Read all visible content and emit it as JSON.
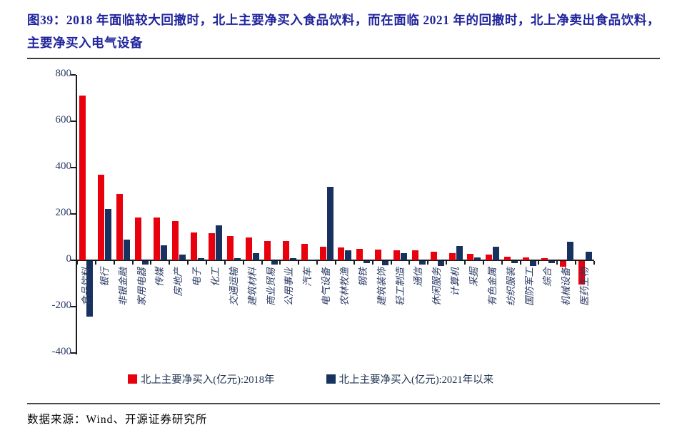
{
  "figure": {
    "title": "图39：2018 年面临较大回撤时，北上主要净买入食品饮料，而在面临 2021 年的回撤时，北上净卖出食品饮料，主要净买入电气设备",
    "source": "数据来源：Wind、开源证券研究所"
  },
  "colors": {
    "title_navy": "#20249c",
    "bar_red": "#e8000d",
    "bar_navy": "#17325f",
    "axis_text": "#2b3a64",
    "legend_text": "#1f3352",
    "axis_line": "#1a1a1a"
  },
  "chart_data": {
    "type": "bar",
    "unit": "亿元",
    "title": "",
    "xlabel": "",
    "ylabel": "",
    "ylim": [
      -400,
      800
    ],
    "yticks": [
      800,
      600,
      400,
      200,
      0,
      -200,
      -400
    ],
    "grid": false,
    "legend_position": "bottom",
    "categories": [
      "食品饮料",
      "银行",
      "非银金融",
      "家用电器",
      "传媒",
      "房地产",
      "电子",
      "化工",
      "交通运输",
      "建筑材料",
      "商业贸易",
      "公用事业",
      "汽车",
      "电气设备",
      "农林牧渔",
      "钢铁",
      "建筑装饰",
      "轻工制造",
      "通信",
      "休闲服务",
      "计算机",
      "采掘",
      "有色金属",
      "纺织服装",
      "国防军工",
      "综合",
      "机械设备",
      "医药生物"
    ],
    "series": [
      {
        "name": "北上主要净买入(亿元):2018年",
        "color": "#e8000d",
        "values": [
          710,
          368,
          285,
          185,
          185,
          168,
          120,
          118,
          106,
          97,
          84,
          82,
          70,
          60,
          55,
          50,
          45,
          44,
          42,
          36,
          32,
          28,
          26,
          14,
          13,
          8,
          -25,
          -100
        ]
      },
      {
        "name": "北上主要净买入(亿元):2021年以来",
        "color": "#17325f",
        "values": [
          -240,
          222,
          88,
          -15,
          66,
          24,
          8,
          152,
          10,
          30,
          -14,
          8,
          2,
          318,
          44,
          -10,
          -18,
          30,
          -14,
          -20,
          62,
          12,
          58,
          -8,
          -22,
          -8,
          80,
          38
        ]
      }
    ]
  }
}
